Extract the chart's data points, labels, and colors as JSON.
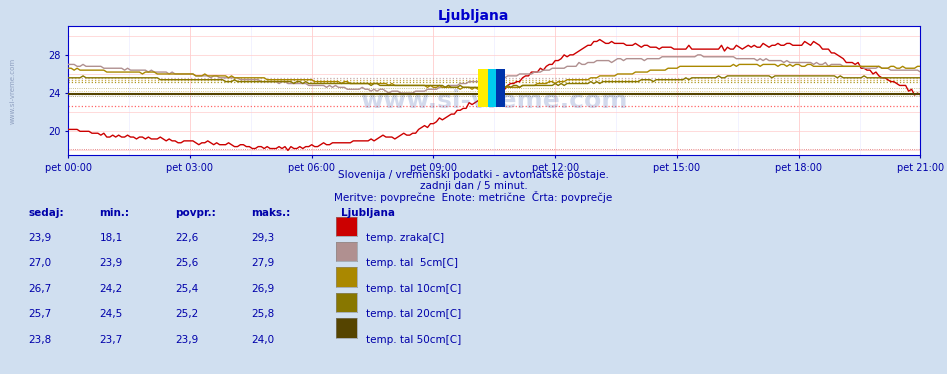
{
  "title": "Ljubljana",
  "bg_color": "#d0dff0",
  "plot_bg": "#ffffff",
  "axis_color": "#0000cc",
  "text_color": "#0000aa",
  "subtitle1": "Slovenija / vremenski podatki - avtomatske postaje.",
  "subtitle2": "zadnji dan / 5 minut.",
  "subtitle3": "Meritve: povprečne  Enote: metrične  Črta: povprečje",
  "xlabel_times": [
    "pet 00:00",
    "pet 03:00",
    "pet 06:00",
    "pet 09:00",
    "pet 12:00",
    "pet 15:00",
    "pet 18:00",
    "pet 21:00"
  ],
  "ylim": [
    17.5,
    31.0
  ],
  "yticks": [
    20,
    24,
    28
  ],
  "N": 288,
  "series_colors": [
    "#cc0000",
    "#b09090",
    "#aa8800",
    "#887700",
    "#554400"
  ],
  "series_avg_colors": [
    "#ff6666",
    "#c8a8a8",
    "#ccaa44",
    "#aa9922",
    "#887755"
  ],
  "series_avg_vals": [
    22.6,
    25.6,
    25.4,
    25.2,
    23.9
  ],
  "series_min_vals": [
    18.1,
    23.9,
    24.2,
    24.5,
    23.7
  ],
  "series_linewidths": [
    1.0,
    1.0,
    1.0,
    1.0,
    1.5
  ],
  "table_headers": [
    "sedaj:",
    "min.:",
    "povpr.:",
    "maks.:"
  ],
  "location_label": "Ljubljana",
  "watermark": "www.si-vreme.com",
  "legend_colors": [
    "#cc0000",
    "#b09090",
    "#aa8800",
    "#887700",
    "#554400"
  ],
  "legend_labels": [
    "temp. zraka[C]",
    "temp. tal  5cm[C]",
    "temp. tal 10cm[C]",
    "temp. tal 20cm[C]",
    "temp. tal 50cm[C]"
  ],
  "row_data": [
    [
      23.9,
      18.1,
      22.6,
      29.3
    ],
    [
      27.0,
      23.9,
      25.6,
      27.9
    ],
    [
      26.7,
      24.2,
      25.4,
      26.9
    ],
    [
      25.7,
      24.5,
      25.2,
      25.8
    ],
    [
      23.8,
      23.7,
      23.9,
      24.0
    ]
  ]
}
